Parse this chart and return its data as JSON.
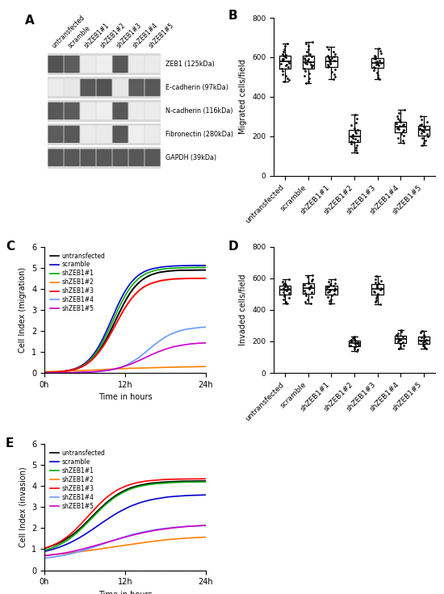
{
  "panel_B": {
    "ylabel": "Migrated cells/field",
    "ylim": [
      0,
      800
    ],
    "yticks": [
      0,
      200,
      400,
      600,
      800
    ],
    "categories": [
      "untransfected",
      "scramble",
      "shZEB1#1",
      "shZEB1#2",
      "shZEB1#3",
      "shZEB1#4",
      "shZEB1#5"
    ],
    "box_stats": {
      "untransfected": {
        "med": 590,
        "q1": 565,
        "q3": 615,
        "wlo": 480,
        "whi": 680
      },
      "scramble": {
        "med": 575,
        "q1": 545,
        "q3": 605,
        "wlo": 470,
        "whi": 680
      },
      "shZEB1#1": {
        "med": 580,
        "q1": 555,
        "q3": 605,
        "wlo": 490,
        "whi": 665
      },
      "shZEB1#2": {
        "med": 200,
        "q1": 175,
        "q3": 230,
        "wlo": 115,
        "whi": 320
      },
      "shZEB1#3": {
        "med": 575,
        "q1": 550,
        "q3": 600,
        "wlo": 490,
        "whi": 650
      },
      "shZEB1#4": {
        "med": 252,
        "q1": 232,
        "q3": 272,
        "wlo": 170,
        "whi": 340
      },
      "shZEB1#5": {
        "med": 235,
        "q1": 215,
        "q3": 258,
        "wlo": 155,
        "whi": 310
      }
    },
    "pts": {
      "untransfected": [
        475,
        485,
        495,
        505,
        515,
        530,
        542,
        552,
        558,
        562,
        568,
        572,
        578,
        582,
        586,
        590,
        593,
        598,
        602,
        608,
        612,
        618,
        628,
        642,
        658,
        670
      ],
      "scramble": [
        468,
        478,
        492,
        505,
        518,
        532,
        543,
        552,
        558,
        562,
        567,
        572,
        577,
        582,
        588,
        593,
        597,
        602,
        608,
        618,
        628,
        642,
        656,
        668,
        678
      ],
      "shZEB1#1": [
        488,
        502,
        515,
        528,
        540,
        550,
        556,
        562,
        567,
        572,
        578,
        582,
        587,
        591,
        595,
        600,
        604,
        610,
        618,
        628,
        640,
        655
      ],
      "shZEB1#2": [
        115,
        128,
        140,
        152,
        162,
        170,
        175,
        180,
        186,
        192,
        197,
        202,
        208,
        215,
        222,
        230,
        240,
        255,
        270,
        290,
        308
      ],
      "shZEB1#3": [
        488,
        498,
        510,
        522,
        535,
        545,
        552,
        558,
        562,
        567,
        572,
        576,
        580,
        585,
        590,
        596,
        602,
        610,
        620,
        632,
        645
      ],
      "shZEB1#4": [
        168,
        178,
        190,
        202,
        212,
        222,
        230,
        235,
        240,
        245,
        250,
        255,
        260,
        265,
        272,
        280,
        290,
        302,
        318,
        335
      ],
      "shZEB1#5": [
        155,
        165,
        178,
        190,
        200,
        210,
        216,
        222,
        228,
        233,
        238,
        243,
        248,
        255,
        262,
        272,
        285,
        300
      ]
    }
  },
  "panel_D": {
    "ylabel": "Invaded cells/field",
    "ylim": [
      0,
      800
    ],
    "yticks": [
      0,
      200,
      400,
      600,
      800
    ],
    "categories": [
      "untransfected",
      "scramble",
      "shZEB1#1",
      "shZEB1#2",
      "shZEB1#3",
      "shZEB1#4",
      "shZEB1#5"
    ],
    "box_stats": {
      "untransfected": {
        "med": 530,
        "q1": 502,
        "q3": 558,
        "wlo": 438,
        "whi": 600
      },
      "scramble": {
        "med": 545,
        "q1": 512,
        "q3": 572,
        "wlo": 440,
        "whi": 618
      },
      "shZEB1#1": {
        "med": 528,
        "q1": 505,
        "q3": 555,
        "wlo": 442,
        "whi": 598
      },
      "shZEB1#2": {
        "med": 182,
        "q1": 168,
        "q3": 198,
        "wlo": 138,
        "whi": 232
      },
      "shZEB1#3": {
        "med": 545,
        "q1": 512,
        "q3": 572,
        "wlo": 435,
        "whi": 620
      },
      "shZEB1#4": {
        "med": 210,
        "q1": 195,
        "q3": 228,
        "wlo": 155,
        "whi": 268
      },
      "shZEB1#5": {
        "med": 205,
        "q1": 188,
        "q3": 222,
        "wlo": 152,
        "whi": 262
      }
    },
    "pts": {
      "untransfected": [
        440,
        452,
        465,
        478,
        488,
        498,
        506,
        514,
        520,
        526,
        530,
        534,
        539,
        544,
        550,
        556,
        562,
        570,
        580,
        592
      ],
      "scramble": [
        440,
        452,
        466,
        480,
        492,
        505,
        514,
        522,
        530,
        537,
        543,
        548,
        554,
        560,
        567,
        574,
        582,
        594,
        608,
        618
      ],
      "shZEB1#1": [
        442,
        455,
        468,
        480,
        492,
        502,
        510,
        518,
        524,
        529,
        533,
        538,
        543,
        549,
        555,
        562,
        570,
        580,
        592
      ],
      "shZEB1#2": [
        138,
        148,
        156,
        164,
        170,
        176,
        181,
        186,
        190,
        194,
        198,
        203,
        208,
        215,
        222,
        232
      ],
      "shZEB1#3": [
        435,
        448,
        462,
        476,
        488,
        500,
        510,
        518,
        526,
        532,
        538,
        544,
        550,
        558,
        566,
        574,
        584,
        596,
        612
      ],
      "shZEB1#4": [
        155,
        164,
        174,
        184,
        193,
        200,
        206,
        212,
        217,
        222,
        228,
        235,
        243,
        252,
        262,
        270
      ],
      "shZEB1#5": [
        152,
        162,
        172,
        180,
        188,
        194,
        200,
        206,
        212,
        218,
        224,
        232,
        242,
        254,
        264
      ]
    }
  },
  "line_colors": {
    "untransfected": "#000000",
    "scramble": "#0000CC",
    "shZEB1#1": "#00AA00",
    "shZEB1#2": "#FF8000",
    "shZEB1#3": "#FF0000",
    "shZEB1#4": "#6699FF",
    "shZEB1#5": "#CC00CC"
  },
  "legend_labels": [
    "untransfected",
    "scramble",
    "shZEB1#1",
    "shZEB1#2",
    "shZEB1#3",
    "shZEB1#4",
    "shZEB1#5"
  ],
  "blot_labels": [
    "ZEB1 (125kDa)",
    "E-cadherin (97kDa)",
    "N-cadherin (116kDa)",
    "Fibronectin (280kDa)",
    "GAPDH (39kDa)"
  ],
  "col_labels": [
    "untransfected",
    "scramble",
    "shZEB1#1",
    "shZEB1#2",
    "shZEB1#3",
    "shZEB1#4",
    "shZEB1#5"
  ]
}
